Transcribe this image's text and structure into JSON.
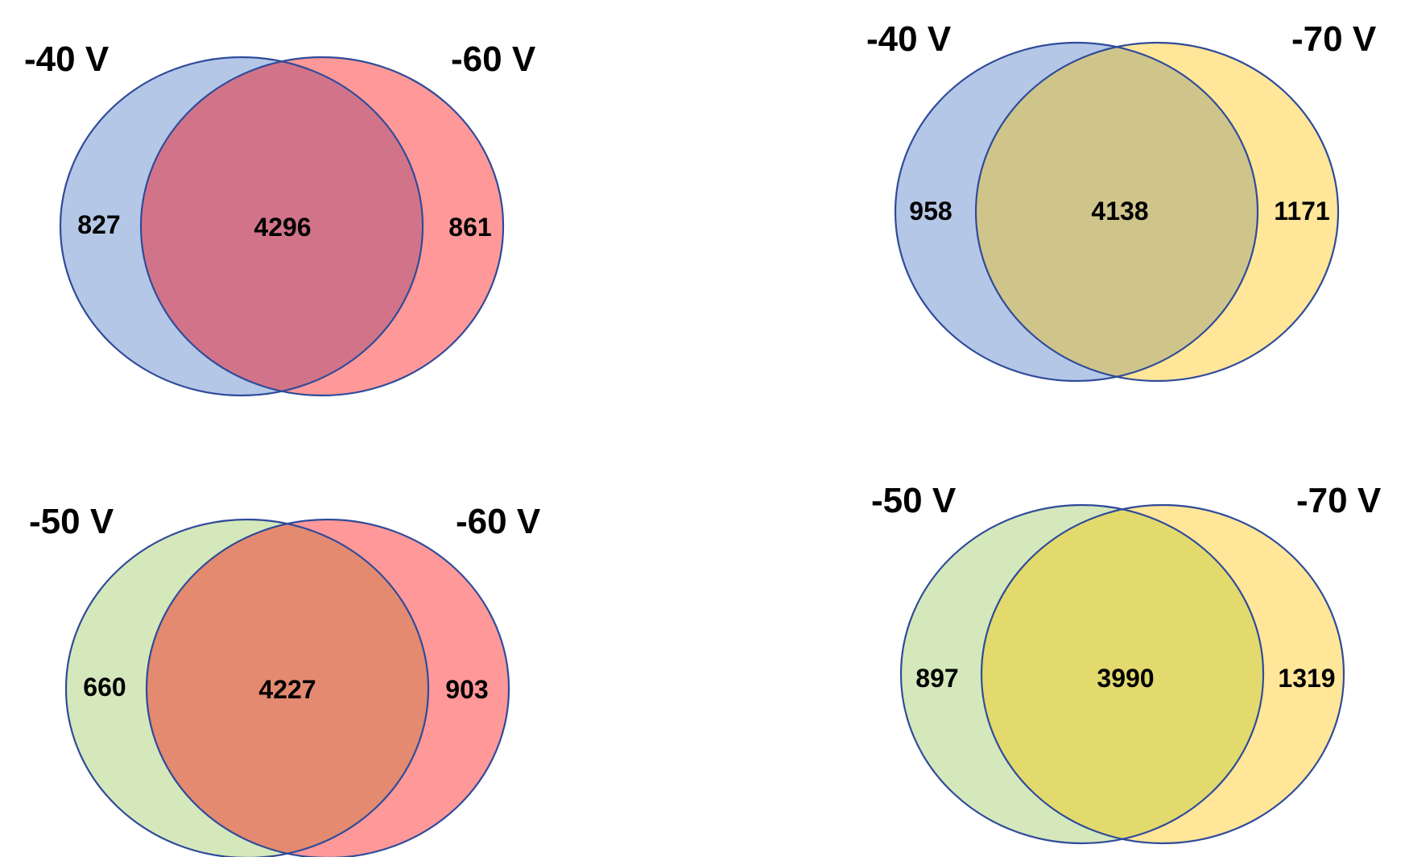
{
  "colors": {
    "blue": "#b4c7e7",
    "red": "#ff9999",
    "yellow": "#ffe699",
    "green": "#d5e8bc",
    "overlap_blue_red": "#d27489",
    "overlap_blue_yellow": "#cfc58b",
    "overlap_green_red": "#e38a70",
    "overlap_green_yellow": "#e3da6e",
    "outline": "#2f4b9a"
  },
  "diagrams": [
    {
      "left_set": {
        "label": "-40 V",
        "color": "blue",
        "only_count": "827"
      },
      "right_set": {
        "label": "-60 V",
        "color": "red",
        "only_count": "861"
      },
      "overlap": {
        "count": "4296",
        "color": "overlap_blue_red"
      }
    },
    {
      "left_set": {
        "label": "-40 V",
        "color": "blue",
        "only_count": "958"
      },
      "right_set": {
        "label": "-70 V",
        "color": "yellow",
        "only_count": "1171"
      },
      "overlap": {
        "count": "4138",
        "color": "overlap_blue_yellow"
      }
    },
    {
      "left_set": {
        "label": "-50 V",
        "color": "green",
        "only_count": "660"
      },
      "right_set": {
        "label": "-60 V",
        "color": "red",
        "only_count": "903"
      },
      "overlap": {
        "count": "4227",
        "color": "overlap_green_red"
      }
    },
    {
      "left_set": {
        "label": "-50 V",
        "color": "green",
        "only_count": "897"
      },
      "right_set": {
        "label": "-70 V",
        "color": "yellow",
        "only_count": "1319"
      },
      "overlap": {
        "count": "3990",
        "color": "overlap_green_yellow"
      }
    }
  ]
}
